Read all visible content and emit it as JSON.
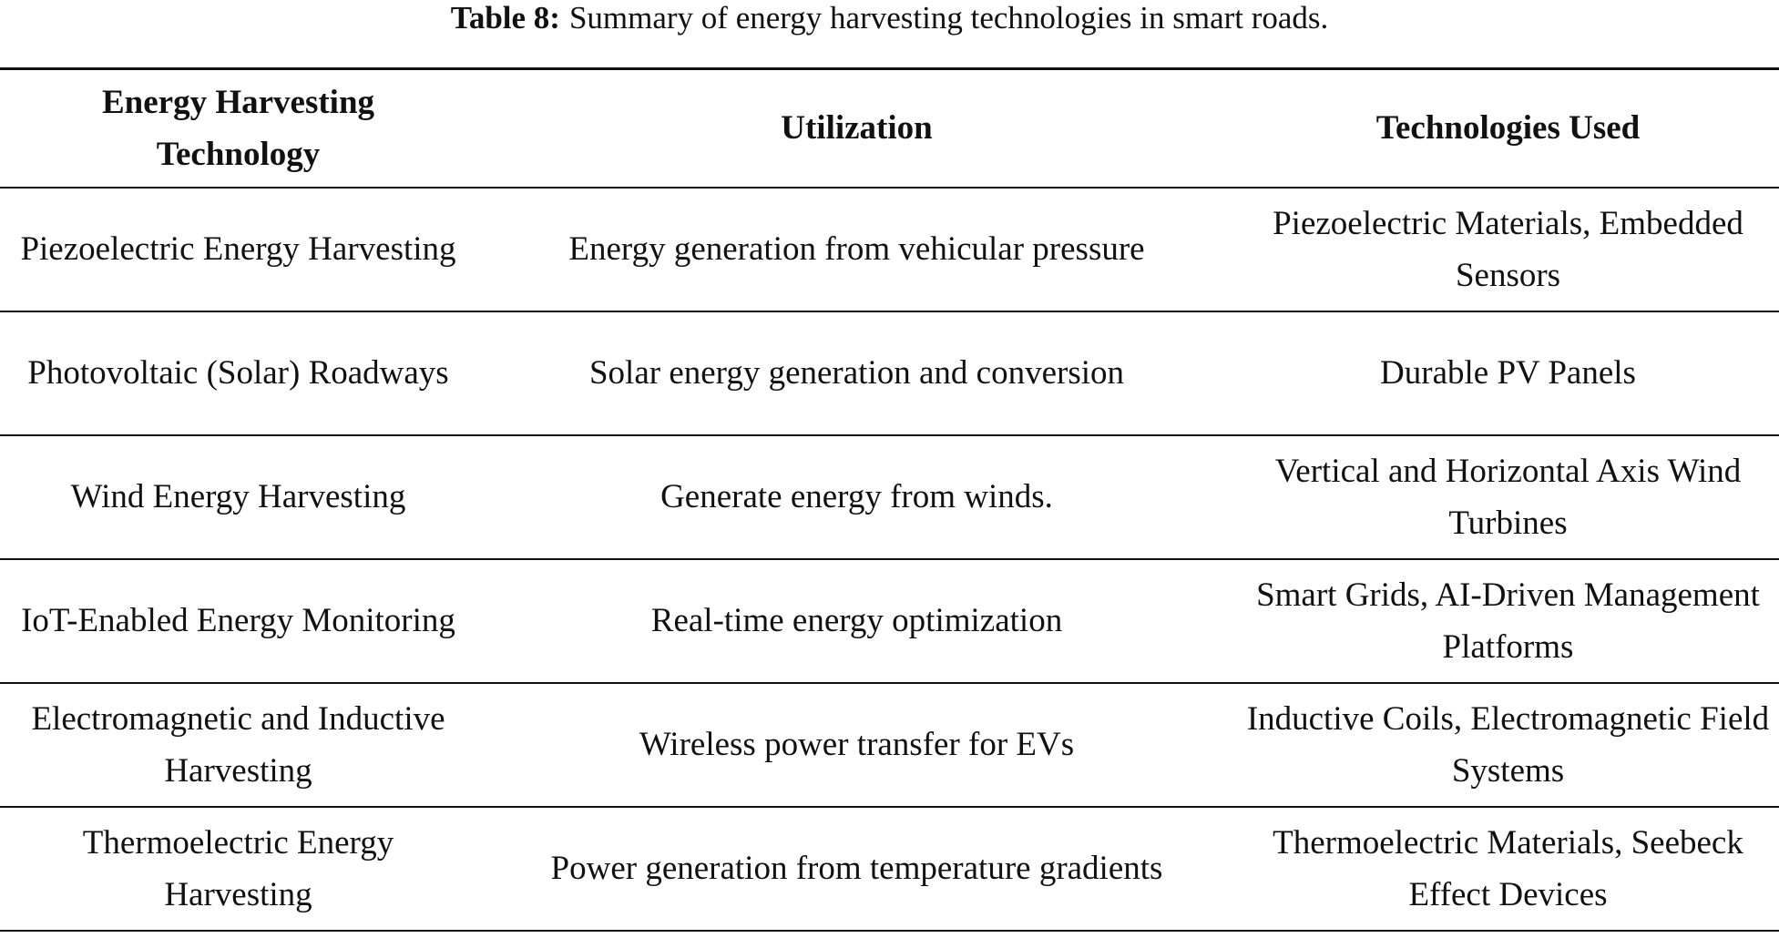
{
  "title": {
    "label": "Table 8:",
    "text": "Summary of energy harvesting technologies in smart roads."
  },
  "table": {
    "header": [
      "Energy Harvesting Technology",
      "Utilization",
      "Technologies Used"
    ],
    "rows": [
      [
        "Piezoelectric Energy Harvesting",
        "Energy generation from vehicular pressure",
        "Piezoelectric Materials, Embedded Sensors"
      ],
      [
        "Photovoltaic (Solar) Roadways",
        "Solar energy generation and conversion",
        "Durable PV Panels"
      ],
      [
        "Wind Energy Harvesting",
        "Generate energy from winds.",
        "Vertical and Horizontal Axis Wind Turbines"
      ],
      [
        "IoT-Enabled Energy Monitoring",
        "Real-time energy optimization",
        "Smart Grids, AI-Driven Management Platforms"
      ],
      [
        "Electromagnetic and Inductive Harvesting",
        "Wireless power transfer for EVs",
        "Inductive Coils, Electromagnetic Field Systems"
      ],
      [
        "Thermoelectric Energy Harvesting",
        "Power generation from temperature gradients",
        "Thermoelectric Materials, Seebeck Effect Devices"
      ]
    ]
  }
}
